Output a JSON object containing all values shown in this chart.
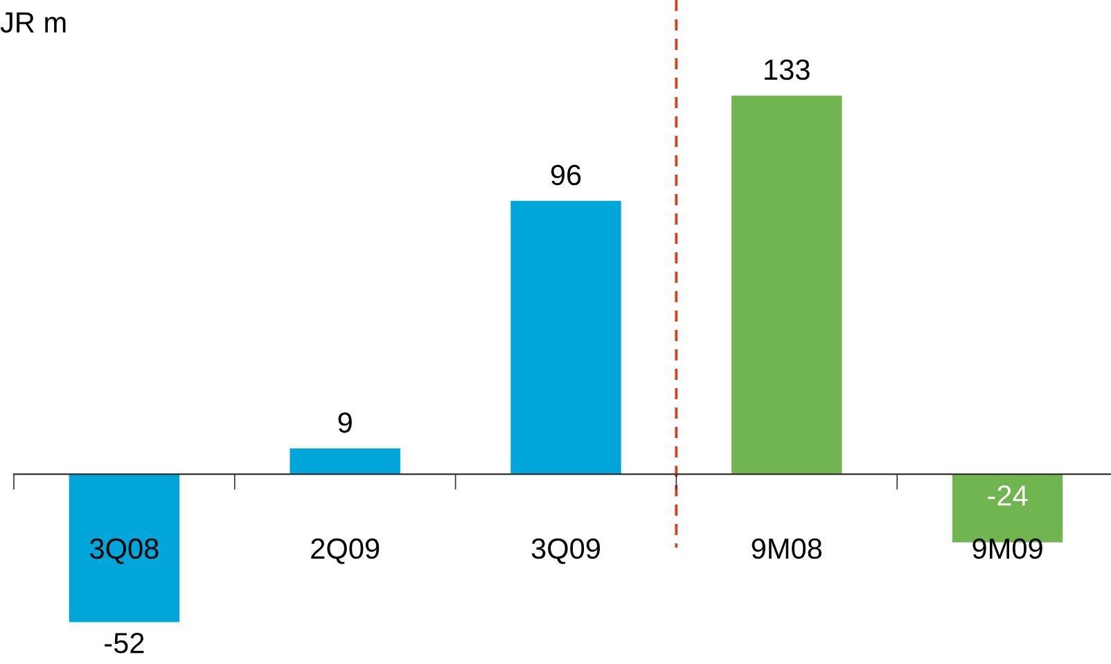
{
  "chart_data": {
    "type": "bar",
    "ylabel": "JR m",
    "categories": [
      "3Q08",
      "2Q09",
      "3Q09",
      "9M08",
      "9M09"
    ],
    "values": [
      -52,
      9,
      96,
      133,
      -24
    ],
    "colors": [
      "#00a6d9",
      "#00a6d9",
      "#00a6d9",
      "#70b54f",
      "#70b54f"
    ],
    "data_labels": true,
    "grid": false,
    "legend": false
  }
}
